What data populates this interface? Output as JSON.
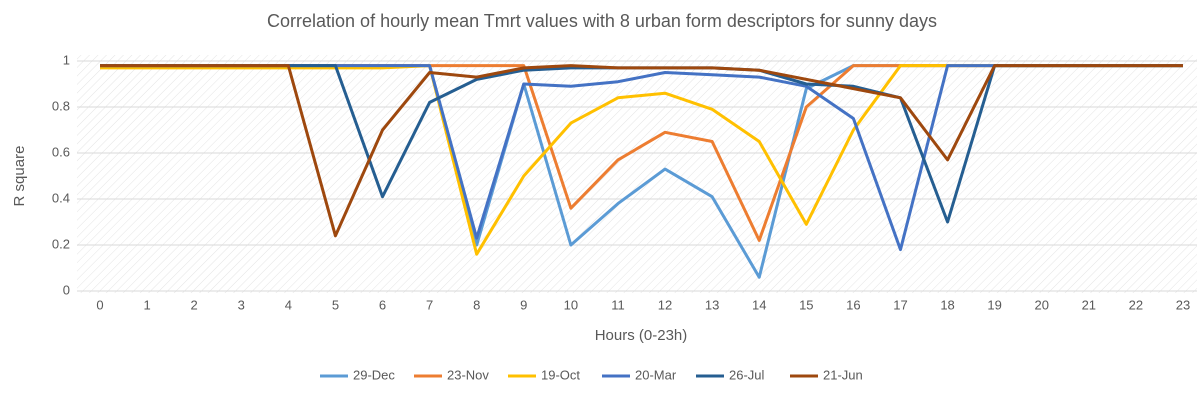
{
  "chart_data": {
    "type": "line",
    "title": "Correlation of hourly mean Tmrt values with 8 urban form descriptors for sunny days",
    "x_label": "Hours (0-23h)",
    "y_label": "R square",
    "categories": [
      "0",
      "1",
      "2",
      "3",
      "4",
      "5",
      "6",
      "7",
      "8",
      "9",
      "10",
      "11",
      "12",
      "13",
      "14",
      "15",
      "16",
      "17",
      "18",
      "19",
      "20",
      "21",
      "22",
      "23"
    ],
    "ylim": [
      0,
      1
    ],
    "yticks": [
      0,
      0.2,
      0.4,
      0.6,
      0.8,
      1
    ],
    "grid": true,
    "legend": "bottom",
    "series": [
      {
        "name": "29-Dec",
        "color": "#5b9bd5",
        "values": [
          0.98,
          0.98,
          0.98,
          0.98,
          0.98,
          0.98,
          0.98,
          0.98,
          0.2,
          0.9,
          0.2,
          0.38,
          0.53,
          0.41,
          0.06,
          0.88,
          0.98,
          0.98,
          0.98,
          0.98,
          0.98,
          0.98,
          0.98,
          0.98
        ]
      },
      {
        "name": "23-Nov",
        "color": "#ed7d31",
        "values": [
          0.98,
          0.98,
          0.98,
          0.98,
          0.98,
          0.98,
          0.98,
          0.98,
          0.98,
          0.98,
          0.36,
          0.57,
          0.69,
          0.65,
          0.22,
          0.8,
          0.98,
          0.98,
          0.98,
          0.98,
          0.98,
          0.98,
          0.98,
          0.98
        ]
      },
      {
        "name": "19-Oct",
        "color": "#ffc000",
        "values": [
          0.97,
          0.97,
          0.97,
          0.97,
          0.97,
          0.97,
          0.97,
          0.98,
          0.16,
          0.5,
          0.73,
          0.84,
          0.86,
          0.79,
          0.65,
          0.29,
          0.7,
          0.98,
          0.98,
          0.98,
          0.98,
          0.98,
          0.98,
          0.98
        ]
      },
      {
        "name": "20-Mar",
        "color": "#4472c4",
        "values": [
          0.98,
          0.98,
          0.98,
          0.98,
          0.98,
          0.98,
          0.98,
          0.98,
          0.23,
          0.9,
          0.89,
          0.91,
          0.95,
          0.94,
          0.93,
          0.89,
          0.75,
          0.18,
          0.98,
          0.98,
          0.98,
          0.98,
          0.98,
          0.98
        ]
      },
      {
        "name": "26-Jul",
        "color": "#255e91",
        "values": [
          0.98,
          0.98,
          0.98,
          0.98,
          0.98,
          0.98,
          0.41,
          0.82,
          0.92,
          0.96,
          0.97,
          0.97,
          0.97,
          0.97,
          0.96,
          0.9,
          0.89,
          0.84,
          0.3,
          0.98,
          0.98,
          0.98,
          0.98,
          0.98
        ]
      },
      {
        "name": "21-Jun",
        "color": "#9e480e",
        "values": [
          0.98,
          0.98,
          0.98,
          0.98,
          0.98,
          0.24,
          0.7,
          0.95,
          0.93,
          0.97,
          0.98,
          0.97,
          0.97,
          0.97,
          0.96,
          0.92,
          0.88,
          0.84,
          0.57,
          0.98,
          0.98,
          0.98,
          0.98,
          0.98
        ]
      }
    ]
  }
}
